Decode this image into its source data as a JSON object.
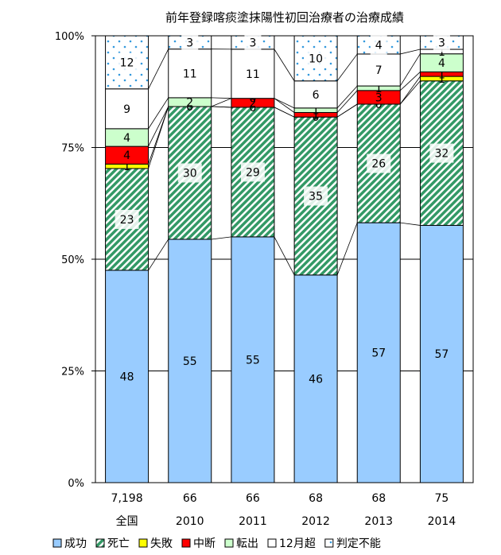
{
  "chart_data": {
    "type": "bar",
    "stacked": true,
    "percent": true,
    "title": "前年登録喀痰塗抹陽性初回治療者の治療成績",
    "xlabel": "",
    "ylabel": "",
    "ylim": [
      0,
      100
    ],
    "yticks": [
      "0%",
      "25%",
      "50%",
      "75%",
      "100%"
    ],
    "categories": [
      "全国",
      "2010",
      "2011",
      "2012",
      "2013",
      "2014"
    ],
    "counts": [
      "7,198",
      "66",
      "66",
      "68",
      "68",
      "75"
    ],
    "series": [
      {
        "name": "成功",
        "color": "#99ccff",
        "pattern": "solid",
        "values": [
          48,
          55,
          55,
          46,
          57,
          57
        ]
      },
      {
        "name": "死亡",
        "color": "#339966",
        "pattern": "hatch",
        "values": [
          23,
          30,
          29,
          35,
          26,
          32
        ]
      },
      {
        "name": "失敗",
        "color": "#ffff00",
        "pattern": "solid",
        "values": [
          1,
          0,
          0,
          0,
          0,
          1
        ]
      },
      {
        "name": "中断",
        "color": "#ff0000",
        "pattern": "solid",
        "values": [
          4,
          0,
          2,
          1,
          3,
          1
        ]
      },
      {
        "name": "転出",
        "color": "#ccffcc",
        "pattern": "solid",
        "values": [
          4,
          2,
          0,
          1,
          1,
          4
        ]
      },
      {
        "name": "12月超",
        "color": "#ffffff",
        "pattern": "solid",
        "values": [
          9,
          11,
          11,
          6,
          7,
          1
        ]
      },
      {
        "name": "判定不能",
        "color": "#ffffff",
        "pattern": "dots",
        "values": [
          12,
          3,
          3,
          10,
          4,
          3
        ]
      }
    ],
    "legend_position": "bottom",
    "connector_lines": true
  }
}
